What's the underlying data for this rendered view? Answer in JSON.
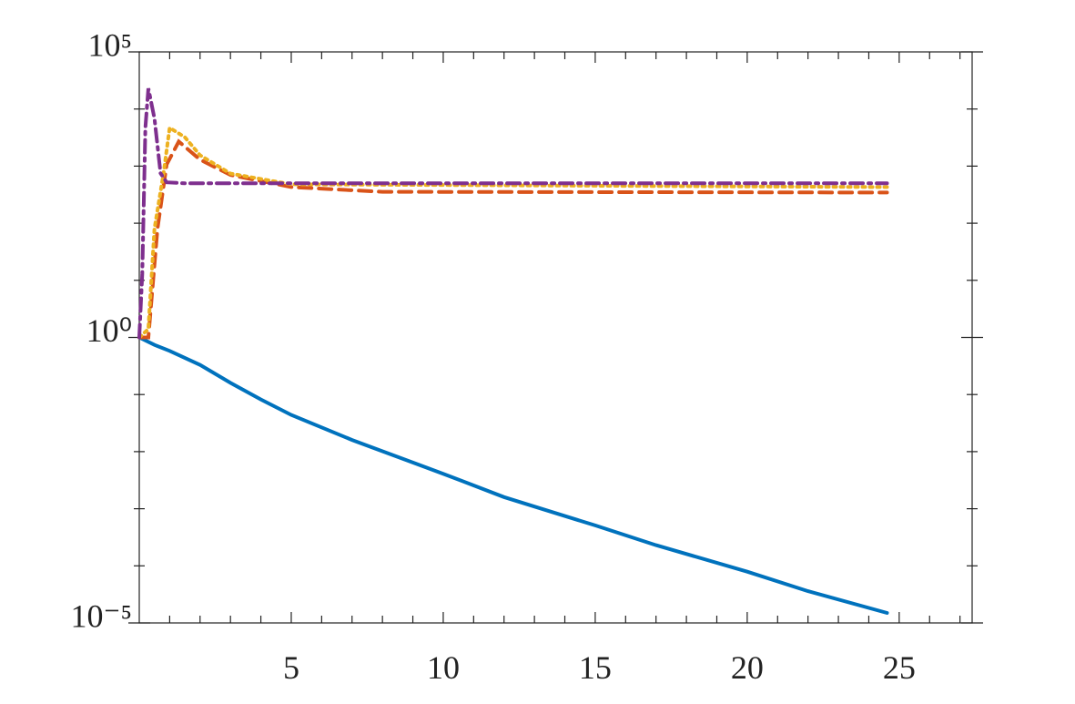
{
  "chart_data": {
    "type": "line",
    "yscale": "log",
    "xlim": [
      0,
      27.4
    ],
    "ylim": [
      1e-05,
      100000
    ],
    "xticks": [
      5,
      10,
      15,
      20,
      25
    ],
    "xminorticks": [
      1,
      2,
      3,
      4,
      6,
      7,
      8,
      9,
      11,
      12,
      13,
      14,
      16,
      17,
      18,
      19,
      21,
      22,
      23,
      24,
      26,
      27
    ],
    "yticks": [
      {
        "value": 1e-05,
        "label": "10⁻⁵"
      },
      {
        "value": 1,
        "label": "10⁰"
      },
      {
        "value": 100000,
        "label": "10⁵"
      }
    ],
    "yminorticks": [
      0.0001,
      0.001,
      0.01,
      0.1,
      10,
      100,
      1000,
      10000
    ],
    "series": [
      {
        "color": "#0072bd",
        "dash": "none",
        "x": [
          0,
          0.5,
          1,
          2,
          3,
          4,
          5,
          7,
          10,
          12,
          15,
          17,
          20,
          22,
          24.6
        ],
        "values": [
          1,
          0.74,
          0.58,
          0.33,
          0.16,
          0.082,
          0.044,
          0.016,
          0.0041,
          0.0016,
          0.00051,
          0.00023,
          7.9e-05,
          3.6e-05,
          1.5e-05
        ]
      },
      {
        "color": "#d95319",
        "dash": "14 8",
        "x": [
          0,
          0.3,
          0.6,
          0.9,
          1.3,
          2,
          3,
          5,
          8,
          24.6
        ],
        "values": [
          1,
          1,
          80,
          1070,
          2700,
          1300,
          700,
          430,
          355,
          345
        ]
      },
      {
        "color": "#edb120",
        "dash": "3 5",
        "x": [
          0,
          0.3,
          0.5,
          0.8,
          1,
          1.5,
          2,
          3,
          5,
          24.6
        ],
        "values": [
          1,
          1.4,
          80,
          750,
          4700,
          3200,
          1550,
          740,
          480,
          430
        ]
      },
      {
        "color": "#7e2f8e",
        "dash": "14 6 3 6",
        "x": [
          0,
          0.1,
          0.2,
          0.3,
          0.5,
          0.7,
          0.9,
          1.5,
          24.6
        ],
        "values": [
          1,
          13,
          4700,
          23000,
          6800,
          750,
          520,
          500,
          500
        ]
      }
    ]
  }
}
